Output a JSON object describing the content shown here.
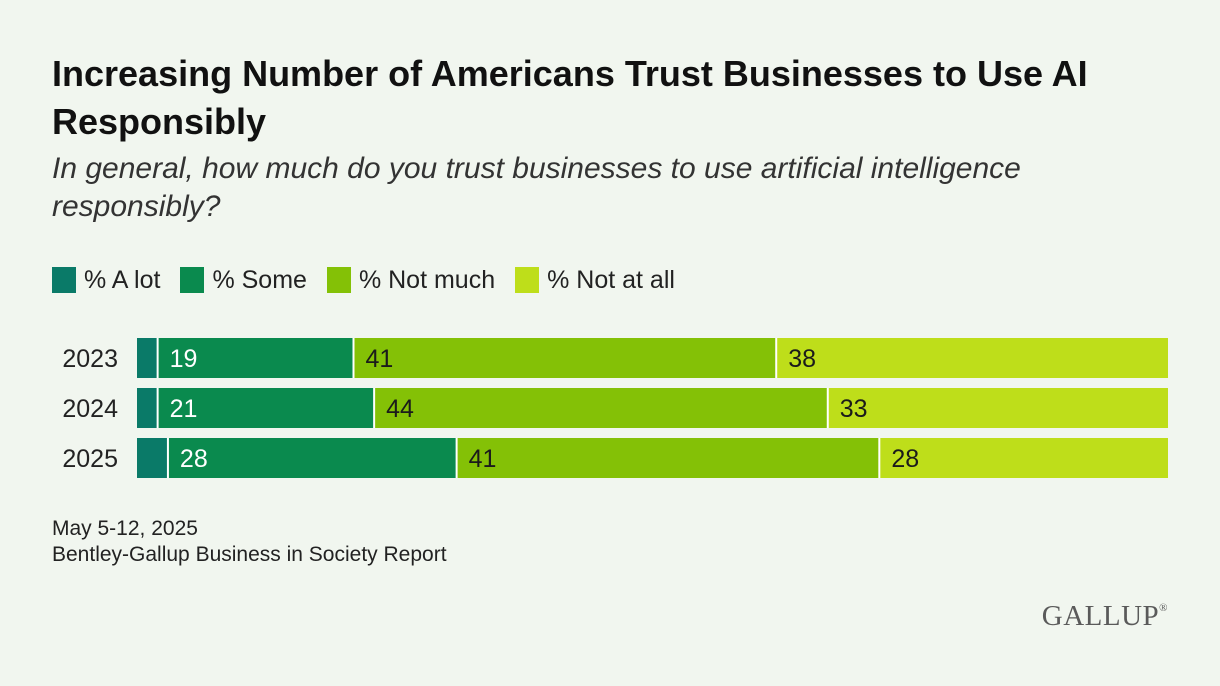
{
  "chart_data": {
    "type": "bar",
    "orientation": "horizontal",
    "stacked": true,
    "title": "Increasing Number of Americans Trust Businesses to Use AI Responsibly",
    "subtitle": "In general, how much do you trust businesses to use artificial intelligence responsibly?",
    "categories": [
      "2023",
      "2024",
      "2025"
    ],
    "series": [
      {
        "name": "% A lot",
        "color": "#0a7a68",
        "values": [
          2,
          2,
          3
        ],
        "labeled": false
      },
      {
        "name": "% Some",
        "color": "#0a8a4e",
        "values": [
          19,
          21,
          28
        ],
        "labeled": true
      },
      {
        "name": "% Not much",
        "color": "#84c106",
        "values": [
          41,
          44,
          41
        ],
        "labeled": true
      },
      {
        "name": "% Not at all",
        "color": "#bede1a",
        "values": [
          38,
          33,
          28
        ],
        "labeled": true
      }
    ],
    "xlim": [
      0,
      100
    ],
    "legend_position": "top-left"
  },
  "footer": {
    "date": "May 5-12, 2025",
    "source": "Bentley-Gallup Business in Society Report"
  },
  "logo": {
    "text": "GALLUP",
    "mark": "®"
  }
}
